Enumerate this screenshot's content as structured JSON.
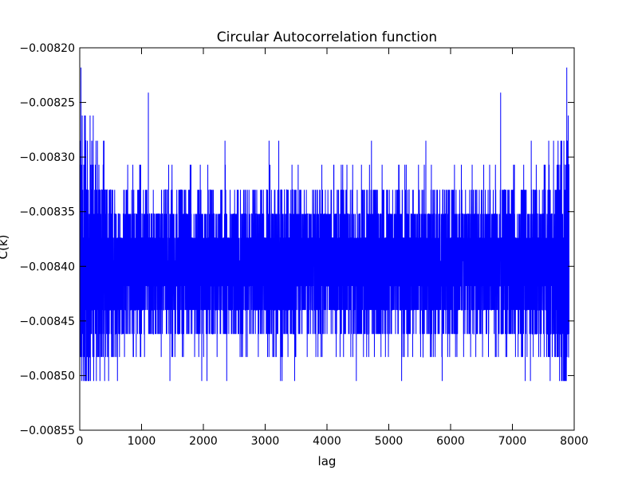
{
  "chart_data": {
    "type": "line",
    "title": "Circular Autocorrelation function",
    "xlabel": "lag",
    "ylabel": "C(k)",
    "xlim": [
      0,
      8000
    ],
    "ylim": [
      -0.00855,
      -0.0082
    ],
    "x_ticks": [
      0,
      1000,
      2000,
      3000,
      4000,
      5000,
      6000,
      7000,
      8000
    ],
    "x_tick_labels": [
      "0",
      "1000",
      "2000",
      "3000",
      "4000",
      "5000",
      "6000",
      "7000",
      "8000"
    ],
    "y_ticks": [
      -0.0082,
      -0.00825,
      -0.0083,
      -0.00835,
      -0.0084,
      -0.00845,
      -0.0085,
      -0.00855
    ],
    "y_tick_labels": [
      "−0.00820",
      "−0.00825",
      "−0.00830",
      "−0.00835",
      "−0.00840",
      "−0.00845",
      "−0.00850",
      "−0.00855"
    ],
    "grid": false,
    "line_color": "#0000ff",
    "series": [
      {
        "name": "",
        "n_points": 7920,
        "quantization_levels": [
          -0.008218,
          -0.008241,
          -0.008262,
          -0.008285,
          -0.008307,
          -0.00833,
          -0.008352,
          -0.008374,
          -0.008395,
          -0.008418,
          -0.00844,
          -0.008462,
          -0.008483,
          -0.008505
        ],
        "peaks": [
          {
            "x": 20,
            "y": -0.008218
          },
          {
            "x": 1110,
            "y": -0.008241
          },
          {
            "x": 2350,
            "y": -0.008285
          },
          {
            "x": 3220,
            "y": -0.008285
          },
          {
            "x": 4720,
            "y": -0.008285
          },
          {
            "x": 5600,
            "y": -0.008285
          },
          {
            "x": 6810,
            "y": -0.008241
          },
          {
            "x": 7880,
            "y": -0.008218
          }
        ]
      }
    ]
  }
}
